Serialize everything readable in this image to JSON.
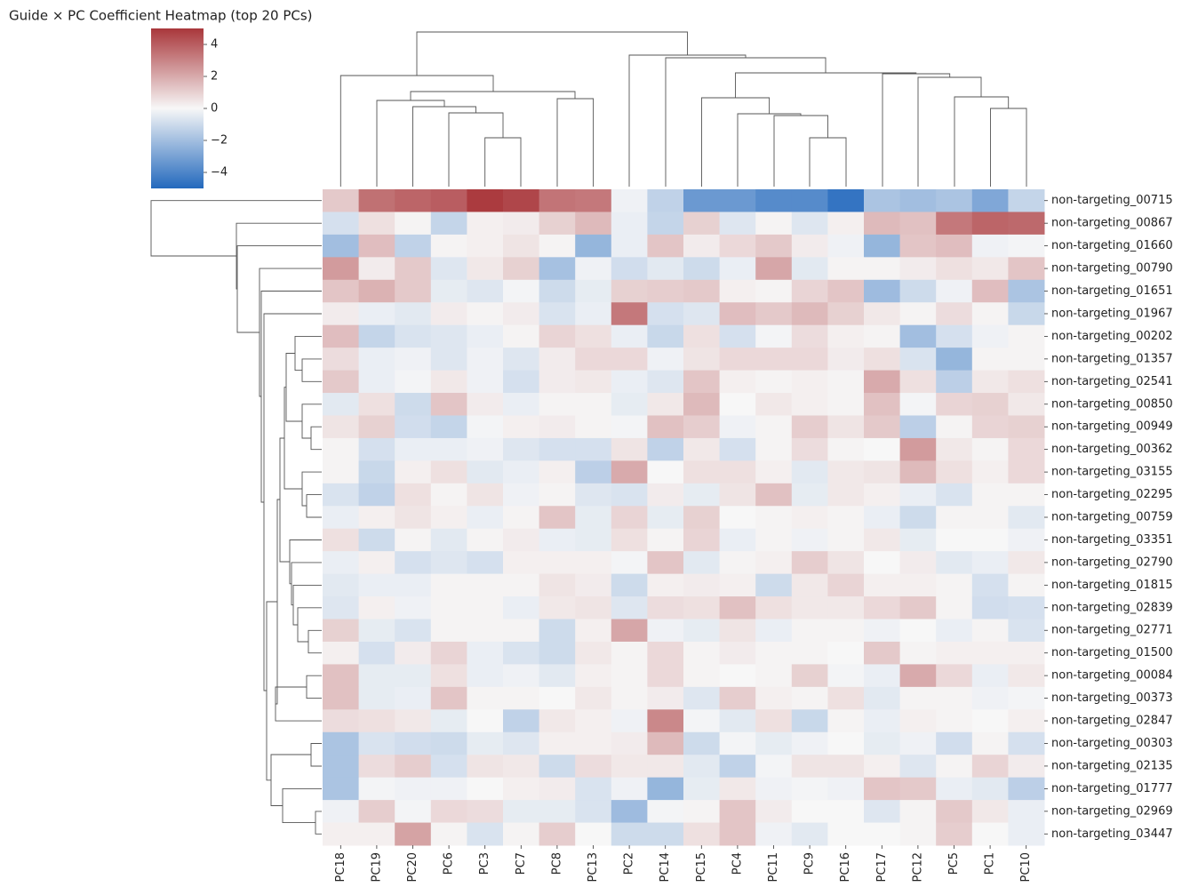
{
  "chart_data": {
    "type": "heatmap",
    "title": "Guide × PC Coefficient Heatmap (top 20 PCs)",
    "columns": [
      "PC18",
      "PC19",
      "PC20",
      "PC6",
      "PC3",
      "PC7",
      "PC8",
      "PC13",
      "PC2",
      "PC14",
      "PC15",
      "PC4",
      "PC11",
      "PC9",
      "PC16",
      "PC17",
      "PC12",
      "PC5",
      "PC1",
      "PC10"
    ],
    "rows": [
      "non-targeting_00715",
      "non-targeting_00867",
      "non-targeting_01660",
      "non-targeting_00790",
      "non-targeting_01651",
      "non-targeting_01967",
      "non-targeting_00202",
      "non-targeting_01357",
      "non-targeting_02541",
      "non-targeting_00850",
      "non-targeting_00949",
      "non-targeting_00362",
      "non-targeting_03155",
      "non-targeting_02295",
      "non-targeting_00759",
      "non-targeting_03351",
      "non-targeting_02790",
      "non-targeting_01815",
      "non-targeting_02839",
      "non-targeting_02771",
      "non-targeting_01500",
      "non-targeting_00084",
      "non-targeting_00373",
      "non-targeting_02847",
      "non-targeting_00303",
      "non-targeting_02135",
      "non-targeting_01777",
      "non-targeting_02969",
      "non-targeting_03447"
    ],
    "values": [
      [
        1.2,
        3.5,
        3.8,
        4.0,
        4.9,
        4.6,
        3.4,
        3.3,
        -0.2,
        -1.3,
        -3.3,
        -3.3,
        -3.8,
        -3.8,
        -4.6,
        -1.8,
        -2.0,
        -1.8,
        -2.8,
        -1.2
      ],
      [
        -0.8,
        0.6,
        0.1,
        -1.2,
        0.2,
        0.3,
        1.0,
        1.6,
        -0.3,
        -1.2,
        1.0,
        -0.6,
        0.1,
        -0.6,
        0.2,
        1.6,
        1.4,
        3.3,
        3.8,
        3.7
      ],
      [
        -2.0,
        1.5,
        -1.3,
        0.1,
        0.2,
        0.5,
        0.1,
        -2.3,
        -0.3,
        1.3,
        0.3,
        0.8,
        1.2,
        0.3,
        -0.2,
        -2.3,
        1.3,
        1.5,
        -0.2,
        -0.1
      ],
      [
        2.4,
        0.3,
        1.2,
        -0.6,
        0.4,
        1.0,
        -1.9,
        -0.2,
        -0.9,
        -0.5,
        -1.0,
        -0.3,
        2.1,
        -0.5,
        0.1,
        0.1,
        0.3,
        0.6,
        0.4,
        1.3
      ],
      [
        1.3,
        1.8,
        1.2,
        -0.4,
        -0.6,
        -0.1,
        -1.0,
        -0.4,
        1.0,
        1.1,
        1.2,
        0.2,
        0.1,
        0.9,
        1.3,
        -2.1,
        -1.0,
        -0.2,
        1.5,
        -1.8
      ],
      [
        0.3,
        -0.3,
        -0.5,
        0.3,
        0.1,
        0.3,
        -0.7,
        -0.3,
        3.3,
        -0.8,
        -0.6,
        1.5,
        1.2,
        1.6,
        1.0,
        0.4,
        0.1,
        0.7,
        0.1,
        -1.1
      ],
      [
        1.5,
        -1.2,
        -0.7,
        -0.6,
        -0.3,
        0.1,
        0.9,
        0.6,
        -0.3,
        -1.1,
        0.6,
        -0.8,
        -0.1,
        0.7,
        0.2,
        0.1,
        -2.0,
        -0.8,
        -0.2,
        0.1
      ],
      [
        0.7,
        -0.3,
        -0.2,
        -0.6,
        -0.2,
        -0.6,
        0.3,
        0.8,
        0.8,
        -0.2,
        0.5,
        0.8,
        0.8,
        0.8,
        0.3,
        0.6,
        -0.7,
        -2.3,
        0.1,
        0.1
      ],
      [
        1.2,
        -0.3,
        -0.1,
        0.4,
        -0.2,
        -0.8,
        0.3,
        0.4,
        -0.3,
        -0.6,
        1.3,
        0.2,
        0.1,
        0.2,
        0.1,
        2.0,
        0.6,
        -1.4,
        0.4,
        0.6
      ],
      [
        -0.5,
        0.6,
        -1.0,
        1.3,
        0.3,
        -0.3,
        0.1,
        0.1,
        -0.4,
        0.4,
        1.6,
        0.0,
        0.4,
        0.2,
        0.1,
        1.4,
        -0.1,
        0.9,
        1.0,
        0.4
      ],
      [
        0.5,
        1.0,
        -0.9,
        -1.2,
        -0.1,
        0.2,
        0.3,
        0.1,
        -0.1,
        1.4,
        1.1,
        -0.2,
        0.1,
        1.1,
        0.5,
        1.2,
        -1.4,
        0.1,
        0.9,
        1.0
      ],
      [
        0.1,
        -0.8,
        -0.3,
        -0.3,
        -0.2,
        -0.6,
        -0.8,
        -0.8,
        0.5,
        -1.3,
        0.4,
        -0.8,
        0.1,
        0.7,
        0.1,
        0.0,
        2.4,
        0.4,
        0.1,
        0.8
      ],
      [
        0.1,
        -1.1,
        0.2,
        0.6,
        -0.5,
        -0.3,
        0.2,
        -1.4,
        2.0,
        0.0,
        0.6,
        0.6,
        0.2,
        -0.5,
        0.4,
        0.5,
        1.6,
        0.6,
        0.2,
        0.8
      ],
      [
        -0.7,
        -1.3,
        0.6,
        0.1,
        0.5,
        -0.2,
        0.1,
        -0.6,
        -0.7,
        0.3,
        -0.4,
        0.5,
        1.4,
        -0.4,
        0.4,
        0.2,
        -0.3,
        -0.7,
        0.1,
        0.1
      ],
      [
        -0.3,
        0.2,
        0.5,
        0.2,
        -0.3,
        0.1,
        1.3,
        -0.4,
        0.9,
        -0.4,
        1.0,
        0.0,
        0.1,
        0.2,
        0.1,
        -0.3,
        -1.0,
        0.1,
        0.1,
        -0.5
      ],
      [
        0.6,
        -1.0,
        0.1,
        -0.5,
        0.1,
        0.3,
        -0.3,
        -0.4,
        0.6,
        0.1,
        0.9,
        -0.3,
        0.1,
        -0.2,
        0.1,
        0.4,
        -0.4,
        0.0,
        0.0,
        -0.2
      ],
      [
        -0.3,
        0.2,
        -0.8,
        -0.6,
        -0.8,
        0.2,
        0.2,
        0.2,
        -0.1,
        1.3,
        -0.5,
        0.1,
        0.2,
        1.1,
        0.5,
        0.0,
        0.3,
        -0.5,
        -0.3,
        0.4
      ],
      [
        -0.5,
        -0.3,
        -0.3,
        0.1,
        0.1,
        0.1,
        0.5,
        0.3,
        -1.0,
        0.2,
        0.3,
        0.2,
        -1.0,
        0.4,
        0.9,
        0.2,
        0.2,
        0.1,
        -0.8,
        0.1
      ],
      [
        -0.6,
        0.2,
        -0.2,
        0.1,
        0.1,
        -0.3,
        0.4,
        0.5,
        -0.6,
        0.7,
        0.6,
        1.4,
        0.6,
        0.4,
        0.4,
        0.8,
        1.2,
        0.1,
        -0.9,
        -0.8
      ],
      [
        1.0,
        -0.4,
        -0.7,
        0.1,
        0.1,
        0.1,
        -1.0,
        0.2,
        2.1,
        -0.2,
        -0.4,
        0.5,
        -0.3,
        0.1,
        0.1,
        -0.2,
        0.0,
        -0.3,
        0.1,
        -0.7
      ],
      [
        0.2,
        -0.8,
        0.3,
        0.9,
        -0.3,
        -0.7,
        -1.0,
        0.4,
        0.1,
        0.8,
        0.1,
        0.3,
        0.1,
        0.1,
        0.0,
        1.2,
        0.1,
        0.2,
        0.2,
        0.2
      ],
      [
        1.4,
        -0.4,
        -0.4,
        0.6,
        -0.3,
        -0.2,
        -0.5,
        0.2,
        0.1,
        0.8,
        0.1,
        0.0,
        0.1,
        1.0,
        -0.1,
        -0.3,
        2.0,
        0.8,
        -0.3,
        0.4
      ],
      [
        1.4,
        -0.4,
        -0.3,
        1.3,
        0.1,
        0.1,
        0.0,
        0.4,
        0.1,
        0.3,
        -0.6,
        1.1,
        0.2,
        0.1,
        0.6,
        -0.5,
        0.1,
        0.1,
        -0.2,
        -0.1
      ],
      [
        0.7,
        0.6,
        0.4,
        -0.4,
        0.0,
        -1.3,
        0.4,
        0.2,
        -0.2,
        2.9,
        -0.1,
        -0.5,
        0.6,
        -1.1,
        0.1,
        -0.3,
        0.2,
        0.1,
        0.0,
        0.2
      ],
      [
        -1.8,
        -0.7,
        -0.9,
        -1.0,
        -0.4,
        -0.6,
        0.2,
        0.2,
        0.3,
        1.6,
        -1.0,
        -0.1,
        -0.4,
        -0.2,
        0.0,
        -0.4,
        -0.2,
        -0.9,
        0.1,
        -0.8
      ],
      [
        -1.8,
        0.7,
        1.1,
        -0.8,
        0.5,
        0.4,
        -1.0,
        0.7,
        0.4,
        0.4,
        -0.5,
        -1.3,
        -0.1,
        0.5,
        0.5,
        0.2,
        -0.6,
        0.1,
        0.9,
        0.3
      ],
      [
        -1.8,
        -0.1,
        -0.2,
        -0.2,
        0.0,
        0.2,
        0.3,
        -0.7,
        -0.2,
        -2.3,
        -0.4,
        0.4,
        -0.2,
        -0.1,
        -0.2,
        1.3,
        1.2,
        -0.3,
        -0.5,
        -1.4
      ],
      [
        -0.2,
        1.1,
        -0.1,
        0.8,
        0.7,
        -0.4,
        -0.4,
        -0.7,
        -2.1,
        -0.1,
        0.1,
        1.3,
        0.3,
        0.0,
        0.0,
        -0.6,
        0.1,
        1.2,
        0.4,
        -0.3
      ],
      [
        0.2,
        0.2,
        2.2,
        0.1,
        -0.7,
        0.1,
        1.1,
        0.0,
        -1.0,
        -1.0,
        0.6,
        1.3,
        -0.2,
        -0.5,
        0.0,
        0.0,
        0.1,
        1.1,
        0.0,
        -0.3
      ]
    ],
    "colormap": [
      "#2369bd",
      "#f7f7f7",
      "#a9373b"
    ],
    "clim": [
      -5,
      5
    ],
    "colorbar_ticks": [
      {
        "value": -4,
        "label": "−4"
      },
      {
        "value": -2,
        "label": "−2"
      },
      0,
      2,
      4
    ]
  }
}
